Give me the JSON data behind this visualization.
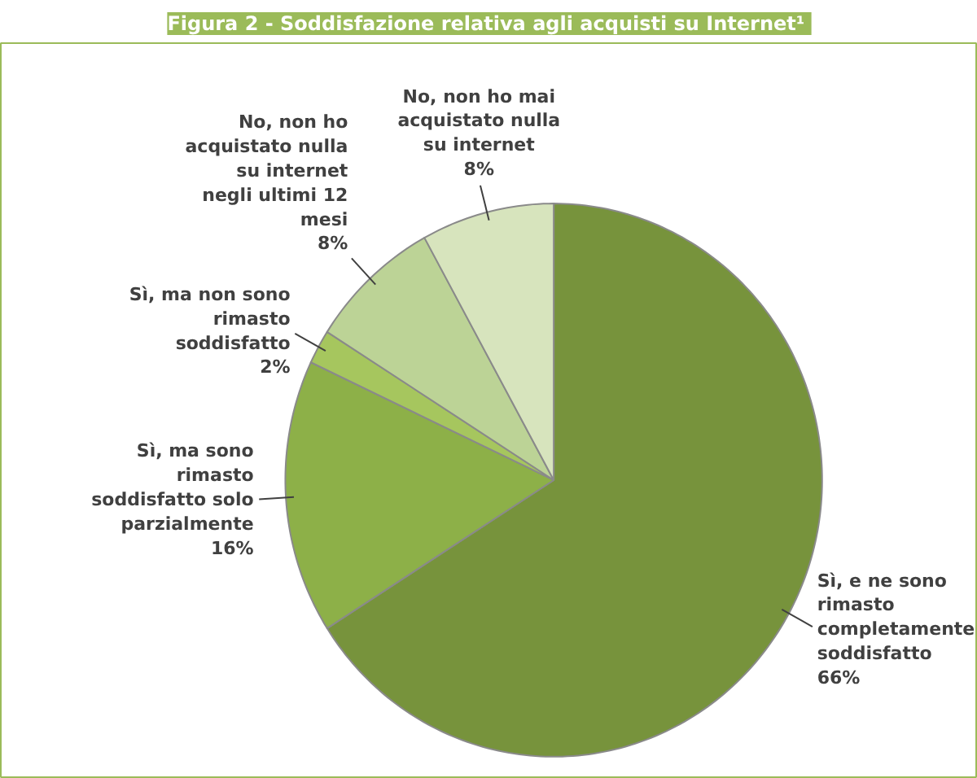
{
  "chart_data": {
    "type": "pie",
    "title": "Figura 2 -  Soddisfazione relativa agli acquisti su Internet¹",
    "categories": [
      "Sì, e ne sono rimasto completamente soddisfatto",
      "Sì, ma sono rimasto soddisfatto solo parzialmente",
      "Sì, ma non sono rimasto soddisfatto",
      "No, non ho acquistato nulla su internet negli ultimi 12 mesi",
      "No, non ho mai acquistato nulla su internet"
    ],
    "values": [
      66,
      16,
      2,
      8,
      8
    ],
    "value_labels": [
      "66%",
      "16%",
      "2%",
      "8%",
      "8%"
    ],
    "colors": [
      "#77933c",
      "#8db048",
      "#a6c65e",
      "#bcd396",
      "#d7e4bd"
    ]
  }
}
